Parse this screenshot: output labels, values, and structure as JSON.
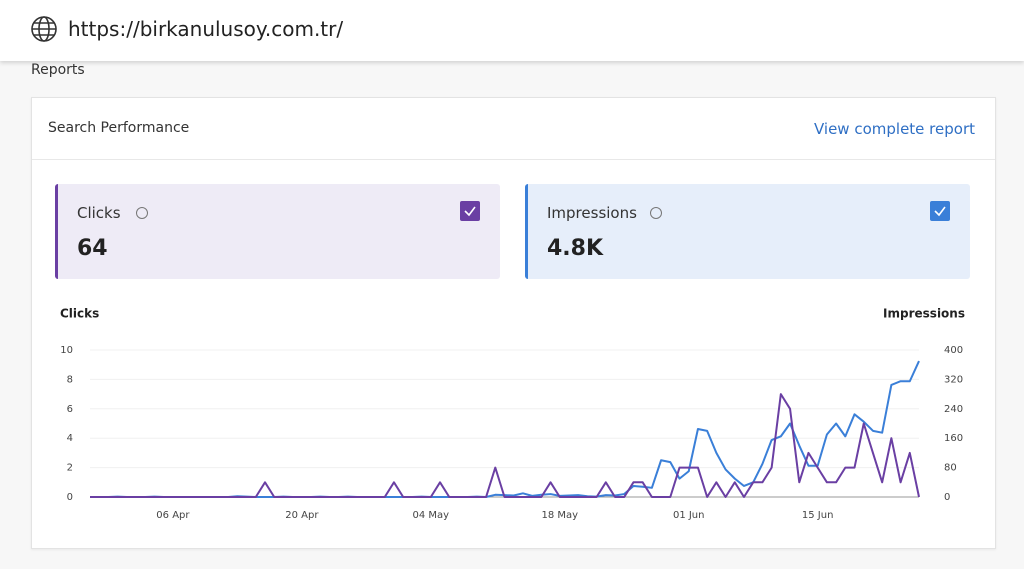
{
  "browser": {
    "url": "https://birkanulusoy.com.tr/"
  },
  "section_title": "Reports",
  "card": {
    "title": "Search Performance",
    "link": "View complete report"
  },
  "metrics": [
    {
      "name": "Clicks",
      "value": "64"
    },
    {
      "name": "Impressions",
      "value": "4.8K"
    }
  ],
  "chart_data": {
    "type": "line",
    "y_label": "Clicks",
    "y2_label": "Impressions",
    "categories": [
      null,
      null,
      null,
      null,
      null,
      null,
      null,
      null,
      null,
      "06 Apr",
      null,
      null,
      null,
      null,
      null,
      null,
      null,
      null,
      null,
      null,
      null,
      null,
      null,
      "20 Apr",
      null,
      null,
      null,
      null,
      null,
      null,
      null,
      null,
      null,
      null,
      null,
      null,
      null,
      "04 May",
      null,
      null,
      null,
      null,
      null,
      null,
      null,
      null,
      null,
      null,
      null,
      null,
      null,
      "18 May",
      null,
      null,
      null,
      null,
      null,
      null,
      null,
      null,
      null,
      null,
      null,
      null,
      null,
      "01 Jun",
      null,
      null,
      null,
      null,
      null,
      null,
      null,
      null,
      null,
      null,
      null,
      null,
      null,
      "15 Jun",
      null,
      null,
      null,
      null,
      null,
      null,
      null,
      null,
      null,
      null,
      null
    ],
    "ylim": [
      0,
      10
    ],
    "yticks": [
      0,
      2,
      4,
      6,
      8,
      10
    ],
    "y2lim": [
      0,
      400
    ],
    "y2ticks": [
      0,
      80,
      160,
      240,
      320,
      400
    ],
    "grid": true,
    "series": [
      {
        "name": "Impressions",
        "color": "#3a7fd8",
        "axis": "y2",
        "values": [
          0,
          0,
          0,
          1,
          0,
          0,
          0,
          1,
          0,
          0,
          0,
          0,
          0,
          0,
          0,
          0,
          2,
          1,
          0,
          0,
          0,
          1,
          0,
          0,
          0,
          1,
          0,
          0,
          1,
          0,
          0,
          0,
          0,
          0,
          0,
          0,
          1,
          0,
          0,
          0,
          0,
          0,
          1,
          0,
          6,
          5,
          4,
          10,
          3,
          6,
          8,
          3,
          4,
          5,
          2,
          1,
          5,
          4,
          8,
          30,
          28,
          25,
          100,
          95,
          50,
          70,
          185,
          180,
          120,
          75,
          50,
          30,
          40,
          90,
          155,
          165,
          200,
          140,
          85,
          85,
          170,
          200,
          165,
          225,
          205,
          180,
          175,
          305,
          315,
          315,
          370
        ]
      },
      {
        "name": "Clicks",
        "color": "#6a3fa3",
        "values": [
          0,
          0,
          0,
          0,
          0,
          0,
          0,
          0,
          0,
          0,
          0,
          0,
          0,
          0,
          0,
          0,
          0,
          0,
          0,
          1,
          0,
          0,
          0,
          0,
          0,
          0,
          0,
          0,
          0,
          0,
          0,
          0,
          0,
          1,
          0,
          0,
          0,
          0,
          1,
          0,
          0,
          0,
          0,
          0,
          2,
          0,
          0,
          0,
          0,
          0,
          1,
          0,
          0,
          0,
          0,
          0,
          1,
          0,
          0,
          1,
          1,
          0,
          0,
          0,
          2,
          2,
          2,
          0,
          1,
          0,
          1,
          0,
          1,
          1,
          2,
          7,
          6,
          1,
          3,
          2,
          1,
          1,
          2,
          2,
          5,
          3,
          1,
          4,
          1,
          3,
          0
        ]
      }
    ]
  }
}
